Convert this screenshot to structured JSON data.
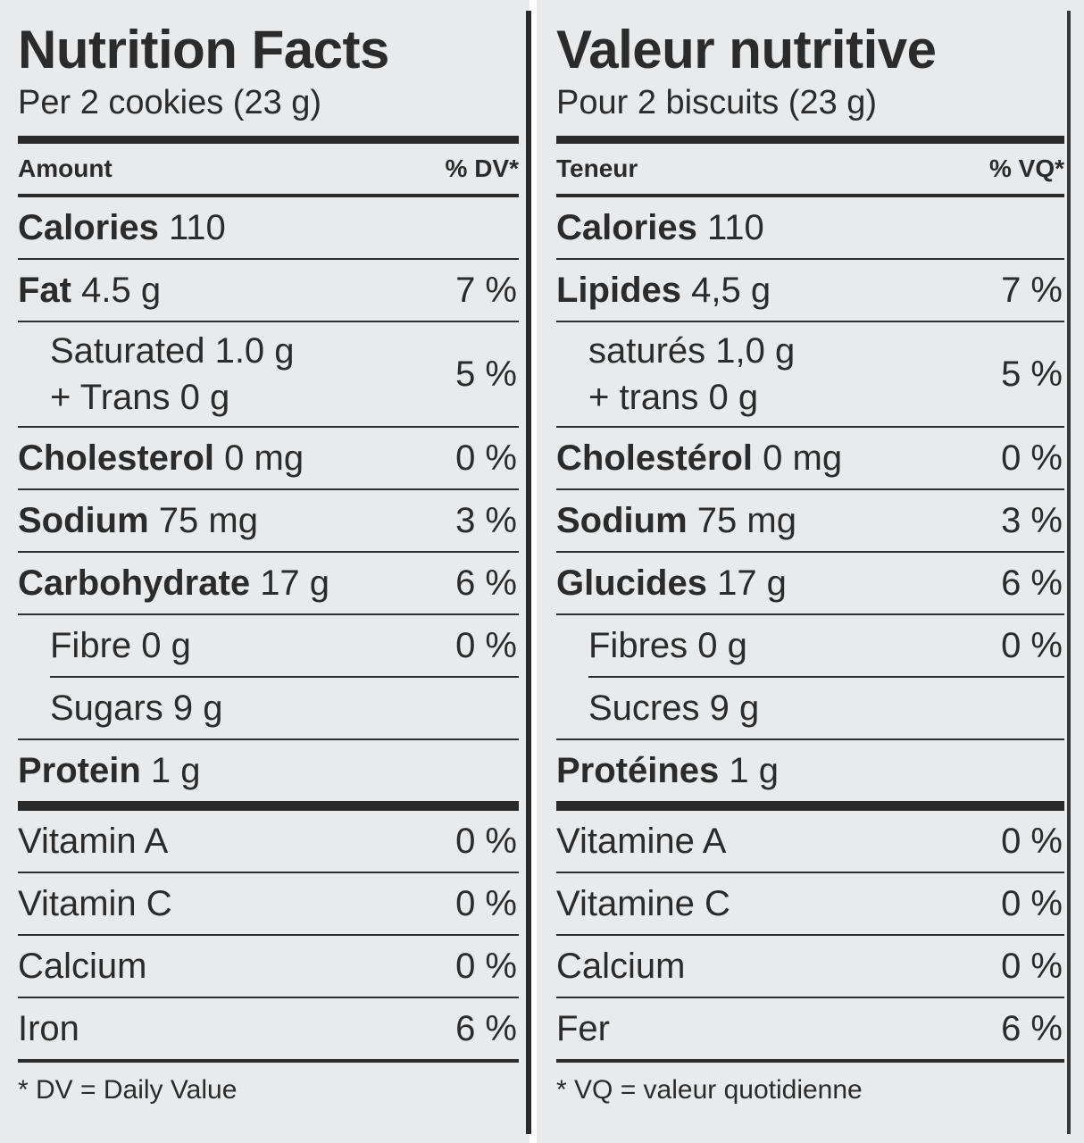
{
  "left": {
    "title": "Nutrition Facts",
    "serving": "Per 2 cookies (23 g)",
    "header_amount": "Amount",
    "header_dv": "% DV*",
    "calories_label": "Calories",
    "calories_value": "110",
    "fat_label": "Fat",
    "fat_value": "4.5 g",
    "fat_dv": "7 %",
    "sat_line1": "Saturated 1.0 g",
    "sat_line2": "+ Trans 0 g",
    "sat_dv": "5 %",
    "chol_label": "Cholesterol",
    "chol_value": "0 mg",
    "chol_dv": "0 %",
    "sodium_label": "Sodium",
    "sodium_value": "75 mg",
    "sodium_dv": "3 %",
    "carb_label": "Carbohydrate",
    "carb_value": "17 g",
    "carb_dv": "6 %",
    "fibre": "Fibre 0 g",
    "fibre_dv": "0 %",
    "sugars": "Sugars 9 g",
    "protein_label": "Protein",
    "protein_value": "1 g",
    "vita": "Vitamin A",
    "vita_dv": "0 %",
    "vitc": "Vitamin C",
    "vitc_dv": "0 %",
    "calcium": "Calcium",
    "calcium_dv": "0 %",
    "iron": "Iron",
    "iron_dv": "6 %",
    "footnote": "* DV = Daily Value"
  },
  "right": {
    "title": "Valeur nutritive",
    "serving": "Pour 2 biscuits (23 g)",
    "header_amount": "Teneur",
    "header_dv": "% VQ*",
    "calories_label": "Calories",
    "calories_value": "110",
    "fat_label": "Lipides",
    "fat_value": "4,5 g",
    "fat_dv": "7 %",
    "sat_line1": "saturés 1,0 g",
    "sat_line2": "+ trans 0 g",
    "sat_dv": "5 %",
    "chol_label": "Cholestérol",
    "chol_value": "0 mg",
    "chol_dv": "0 %",
    "sodium_label": "Sodium",
    "sodium_value": "75 mg",
    "sodium_dv": "3 %",
    "carb_label": "Glucides",
    "carb_value": "17 g",
    "carb_dv": "6 %",
    "fibre": "Fibres 0 g",
    "fibre_dv": "0 %",
    "sugars": "Sucres 9 g",
    "protein_label": "Protéines",
    "protein_value": "1 g",
    "vita": "Vitamine A",
    "vita_dv": "0 %",
    "vitc": "Vitamine C",
    "vitc_dv": "0 %",
    "calcium": "Calcium",
    "calcium_dv": "0 %",
    "iron": "Fer",
    "iron_dv": "6 %",
    "footnote": "* VQ = valeur quotidienne"
  }
}
